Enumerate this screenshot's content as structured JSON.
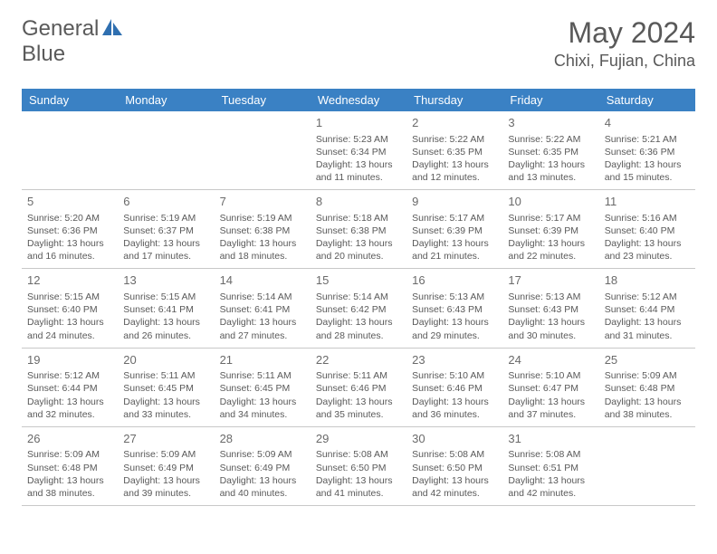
{
  "logo": {
    "prefix": "General",
    "suffix": "Blue"
  },
  "colors": {
    "header_bg": "#3a81c4",
    "header_text": "#ffffff",
    "logo_accent": "#2f6fb0",
    "text": "#595959",
    "border": "#c8c8c8",
    "background": "#ffffff"
  },
  "title": "May 2024",
  "location": "Chixi, Fujian, China",
  "weekdays": [
    "Sunday",
    "Monday",
    "Tuesday",
    "Wednesday",
    "Thursday",
    "Friday",
    "Saturday"
  ],
  "fonts": {
    "title_size": 32,
    "location_size": 18,
    "weekday_size": 13,
    "daynum_size": 13,
    "body_size": 10.5
  },
  "grid": {
    "rows": 5,
    "cols": 7,
    "first_day_col": 3
  },
  "days": [
    {
      "n": "1",
      "sunrise": "5:23 AM",
      "sunset": "6:34 PM",
      "daylight": "13 hours and 11 minutes."
    },
    {
      "n": "2",
      "sunrise": "5:22 AM",
      "sunset": "6:35 PM",
      "daylight": "13 hours and 12 minutes."
    },
    {
      "n": "3",
      "sunrise": "5:22 AM",
      "sunset": "6:35 PM",
      "daylight": "13 hours and 13 minutes."
    },
    {
      "n": "4",
      "sunrise": "5:21 AM",
      "sunset": "6:36 PM",
      "daylight": "13 hours and 15 minutes."
    },
    {
      "n": "5",
      "sunrise": "5:20 AM",
      "sunset": "6:36 PM",
      "daylight": "13 hours and 16 minutes."
    },
    {
      "n": "6",
      "sunrise": "5:19 AM",
      "sunset": "6:37 PM",
      "daylight": "13 hours and 17 minutes."
    },
    {
      "n": "7",
      "sunrise": "5:19 AM",
      "sunset": "6:38 PM",
      "daylight": "13 hours and 18 minutes."
    },
    {
      "n": "8",
      "sunrise": "5:18 AM",
      "sunset": "6:38 PM",
      "daylight": "13 hours and 20 minutes."
    },
    {
      "n": "9",
      "sunrise": "5:17 AM",
      "sunset": "6:39 PM",
      "daylight": "13 hours and 21 minutes."
    },
    {
      "n": "10",
      "sunrise": "5:17 AM",
      "sunset": "6:39 PM",
      "daylight": "13 hours and 22 minutes."
    },
    {
      "n": "11",
      "sunrise": "5:16 AM",
      "sunset": "6:40 PM",
      "daylight": "13 hours and 23 minutes."
    },
    {
      "n": "12",
      "sunrise": "5:15 AM",
      "sunset": "6:40 PM",
      "daylight": "13 hours and 24 minutes."
    },
    {
      "n": "13",
      "sunrise": "5:15 AM",
      "sunset": "6:41 PM",
      "daylight": "13 hours and 26 minutes."
    },
    {
      "n": "14",
      "sunrise": "5:14 AM",
      "sunset": "6:41 PM",
      "daylight": "13 hours and 27 minutes."
    },
    {
      "n": "15",
      "sunrise": "5:14 AM",
      "sunset": "6:42 PM",
      "daylight": "13 hours and 28 minutes."
    },
    {
      "n": "16",
      "sunrise": "5:13 AM",
      "sunset": "6:43 PM",
      "daylight": "13 hours and 29 minutes."
    },
    {
      "n": "17",
      "sunrise": "5:13 AM",
      "sunset": "6:43 PM",
      "daylight": "13 hours and 30 minutes."
    },
    {
      "n": "18",
      "sunrise": "5:12 AM",
      "sunset": "6:44 PM",
      "daylight": "13 hours and 31 minutes."
    },
    {
      "n": "19",
      "sunrise": "5:12 AM",
      "sunset": "6:44 PM",
      "daylight": "13 hours and 32 minutes."
    },
    {
      "n": "20",
      "sunrise": "5:11 AM",
      "sunset": "6:45 PM",
      "daylight": "13 hours and 33 minutes."
    },
    {
      "n": "21",
      "sunrise": "5:11 AM",
      "sunset": "6:45 PM",
      "daylight": "13 hours and 34 minutes."
    },
    {
      "n": "22",
      "sunrise": "5:11 AM",
      "sunset": "6:46 PM",
      "daylight": "13 hours and 35 minutes."
    },
    {
      "n": "23",
      "sunrise": "5:10 AM",
      "sunset": "6:46 PM",
      "daylight": "13 hours and 36 minutes."
    },
    {
      "n": "24",
      "sunrise": "5:10 AM",
      "sunset": "6:47 PM",
      "daylight": "13 hours and 37 minutes."
    },
    {
      "n": "25",
      "sunrise": "5:09 AM",
      "sunset": "6:48 PM",
      "daylight": "13 hours and 38 minutes."
    },
    {
      "n": "26",
      "sunrise": "5:09 AM",
      "sunset": "6:48 PM",
      "daylight": "13 hours and 38 minutes."
    },
    {
      "n": "27",
      "sunrise": "5:09 AM",
      "sunset": "6:49 PM",
      "daylight": "13 hours and 39 minutes."
    },
    {
      "n": "28",
      "sunrise": "5:09 AM",
      "sunset": "6:49 PM",
      "daylight": "13 hours and 40 minutes."
    },
    {
      "n": "29",
      "sunrise": "5:08 AM",
      "sunset": "6:50 PM",
      "daylight": "13 hours and 41 minutes."
    },
    {
      "n": "30",
      "sunrise": "5:08 AM",
      "sunset": "6:50 PM",
      "daylight": "13 hours and 42 minutes."
    },
    {
      "n": "31",
      "sunrise": "5:08 AM",
      "sunset": "6:51 PM",
      "daylight": "13 hours and 42 minutes."
    }
  ],
  "labels": {
    "sunrise": "Sunrise: ",
    "sunset": "Sunset: ",
    "daylight": "Daylight: "
  }
}
